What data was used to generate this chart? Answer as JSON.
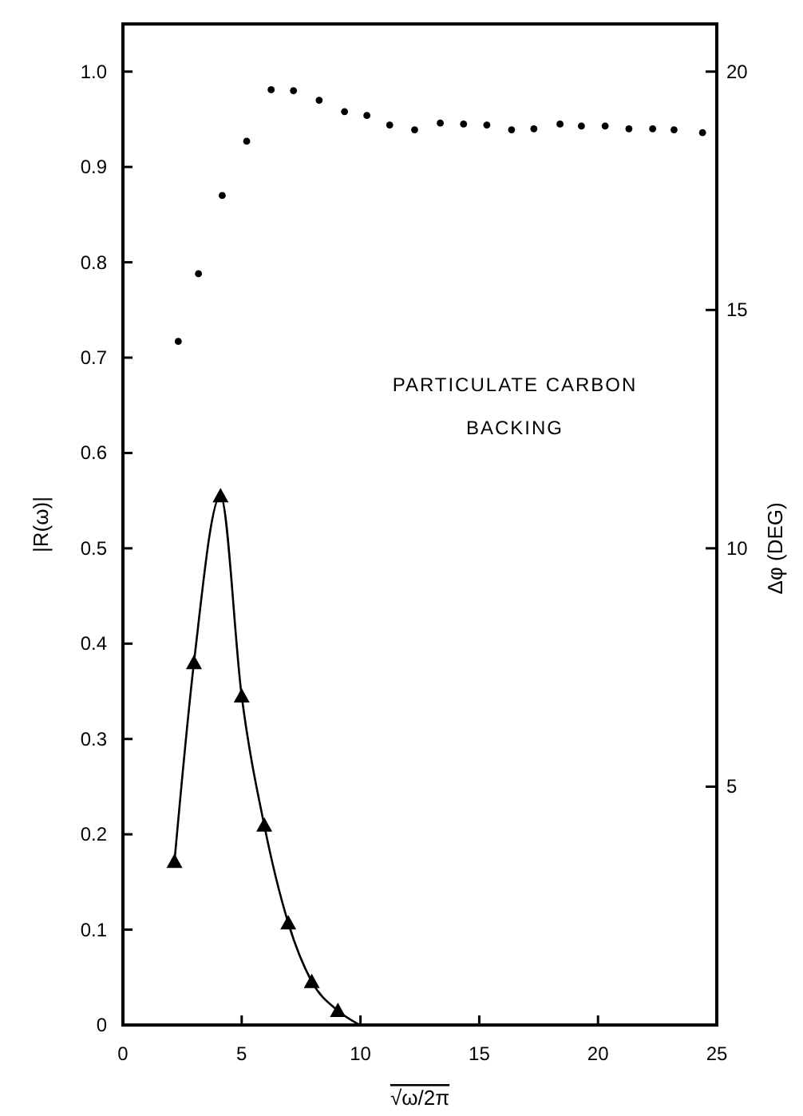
{
  "chart_data": {
    "type": "scatter",
    "xlabel": "√ω/2π",
    "ylabel": "|R(ω)|",
    "y2label": "Δφ (DEG)",
    "annotations": [
      "PARTICULATE CARBON",
      "BACKING"
    ],
    "xlim": [
      0,
      25
    ],
    "xticks": [
      0,
      5,
      10,
      15,
      20,
      25
    ],
    "ylim": [
      0,
      1.05
    ],
    "yticks": [
      0,
      0.1,
      0.2,
      0.3,
      0.4,
      0.5,
      0.6,
      0.7,
      0.8,
      0.9,
      {
        "value": 1.0,
        "label": "1.0"
      }
    ],
    "y2lim": [
      0,
      21
    ],
    "y2ticks": [
      5,
      10,
      15,
      20
    ],
    "grid": false,
    "series": [
      {
        "marker": "circle",
        "color": "#000000",
        "x": [
          2.33,
          3.18,
          4.18,
          5.21,
          6.24,
          7.18,
          8.26,
          9.33,
          10.27,
          11.23,
          12.28,
          13.36,
          14.34,
          15.32,
          16.36,
          17.3,
          18.4,
          19.3,
          20.3,
          21.3,
          22.3,
          23.2,
          24.4
        ],
        "values": [
          0.717,
          0.788,
          0.87,
          0.927,
          0.981,
          0.98,
          0.97,
          0.958,
          0.954,
          0.944,
          0.939,
          0.946,
          0.945,
          0.944,
          0.939,
          0.94,
          0.945,
          0.943,
          0.943,
          0.94,
          0.94,
          0.939,
          0.936
        ]
      },
      {
        "type": "line",
        "marker": "none",
        "line_style": "solid",
        "color": "#000000",
        "axis": "y2",
        "x": [
          2.17,
          2.99,
          4.11,
          5.0,
          5.95,
          6.96,
          7.95,
          9.05,
          9.97
        ],
        "values": [
          3.43,
          7.6,
          11.1,
          6.9,
          4.19,
          2.14,
          0.91,
          0.3,
          0
        ]
      },
      {
        "marker": "triangle",
        "color": "#000000",
        "axis": "y2",
        "x": [
          2.17,
          2.99,
          4.11,
          5.0,
          5.95,
          6.96,
          7.95,
          9.05
        ],
        "values": [
          3.43,
          7.6,
          11.1,
          6.9,
          4.19,
          2.14,
          0.91,
          0.3
        ]
      }
    ]
  }
}
